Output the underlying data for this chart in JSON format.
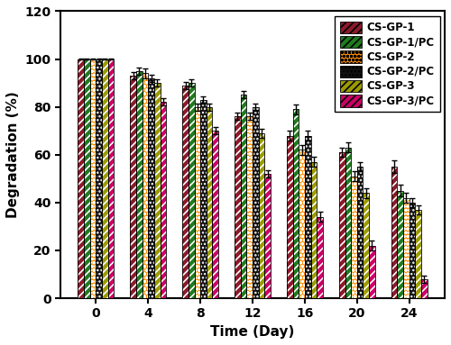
{
  "time_points": [
    0,
    4,
    8,
    12,
    16,
    20,
    24
  ],
  "series": [
    {
      "label": "CS-GP-1",
      "values": [
        100,
        93,
        89,
        76,
        68,
        61,
        55
      ],
      "errors": [
        0.3,
        1.5,
        1.5,
        1.5,
        2.0,
        2.0,
        2.5
      ],
      "color": "#8B1A2A",
      "hatch": "////",
      "hatch_color": "white"
    },
    {
      "label": "CS-GP-1/PC",
      "values": [
        100,
        95,
        90,
        85,
        79,
        63,
        45
      ],
      "errors": [
        0.3,
        1.5,
        1.5,
        1.5,
        2.0,
        2.0,
        2.5
      ],
      "color": "#1E7B1E",
      "hatch": "////",
      "hatch_color": "white"
    },
    {
      "label": "CS-GP-2",
      "values": [
        100,
        94,
        80,
        76,
        62,
        51,
        42
      ],
      "errors": [
        0.3,
        2.0,
        1.5,
        1.5,
        2.0,
        2.0,
        2.0
      ],
      "color": "#FF8C00",
      "hatch": "oooo",
      "hatch_color": "white"
    },
    {
      "label": "CS-GP-2/PC",
      "values": [
        100,
        92,
        83,
        80,
        68,
        55,
        40
      ],
      "errors": [
        0.3,
        1.5,
        1.5,
        1.5,
        2.0,
        2.0,
        2.0
      ],
      "color": "#111111",
      "hatch": "....",
      "hatch_color": "white"
    },
    {
      "label": "CS-GP-3",
      "values": [
        100,
        90,
        80,
        69,
        57,
        44,
        37
      ],
      "errors": [
        0.3,
        1.5,
        1.5,
        2.0,
        2.0,
        2.0,
        2.0
      ],
      "color": "#9B9B00",
      "hatch": "////",
      "hatch_color": "white"
    },
    {
      "label": "CS-GP-3/PC",
      "values": [
        100,
        82,
        70,
        52,
        34,
        22,
        8
      ],
      "errors": [
        0.3,
        1.5,
        1.5,
        1.5,
        2.0,
        2.0,
        1.5
      ],
      "color": "#CC0066",
      "hatch": "////",
      "hatch_color": "white"
    }
  ],
  "ylabel": "Degradation (%)",
  "xlabel": "Time (Day)",
  "ylim": [
    0,
    120
  ],
  "yticks": [
    0,
    20,
    40,
    60,
    80,
    100,
    120
  ],
  "bar_width": 0.115,
  "figsize": [
    5.0,
    3.83
  ],
  "dpi": 100
}
